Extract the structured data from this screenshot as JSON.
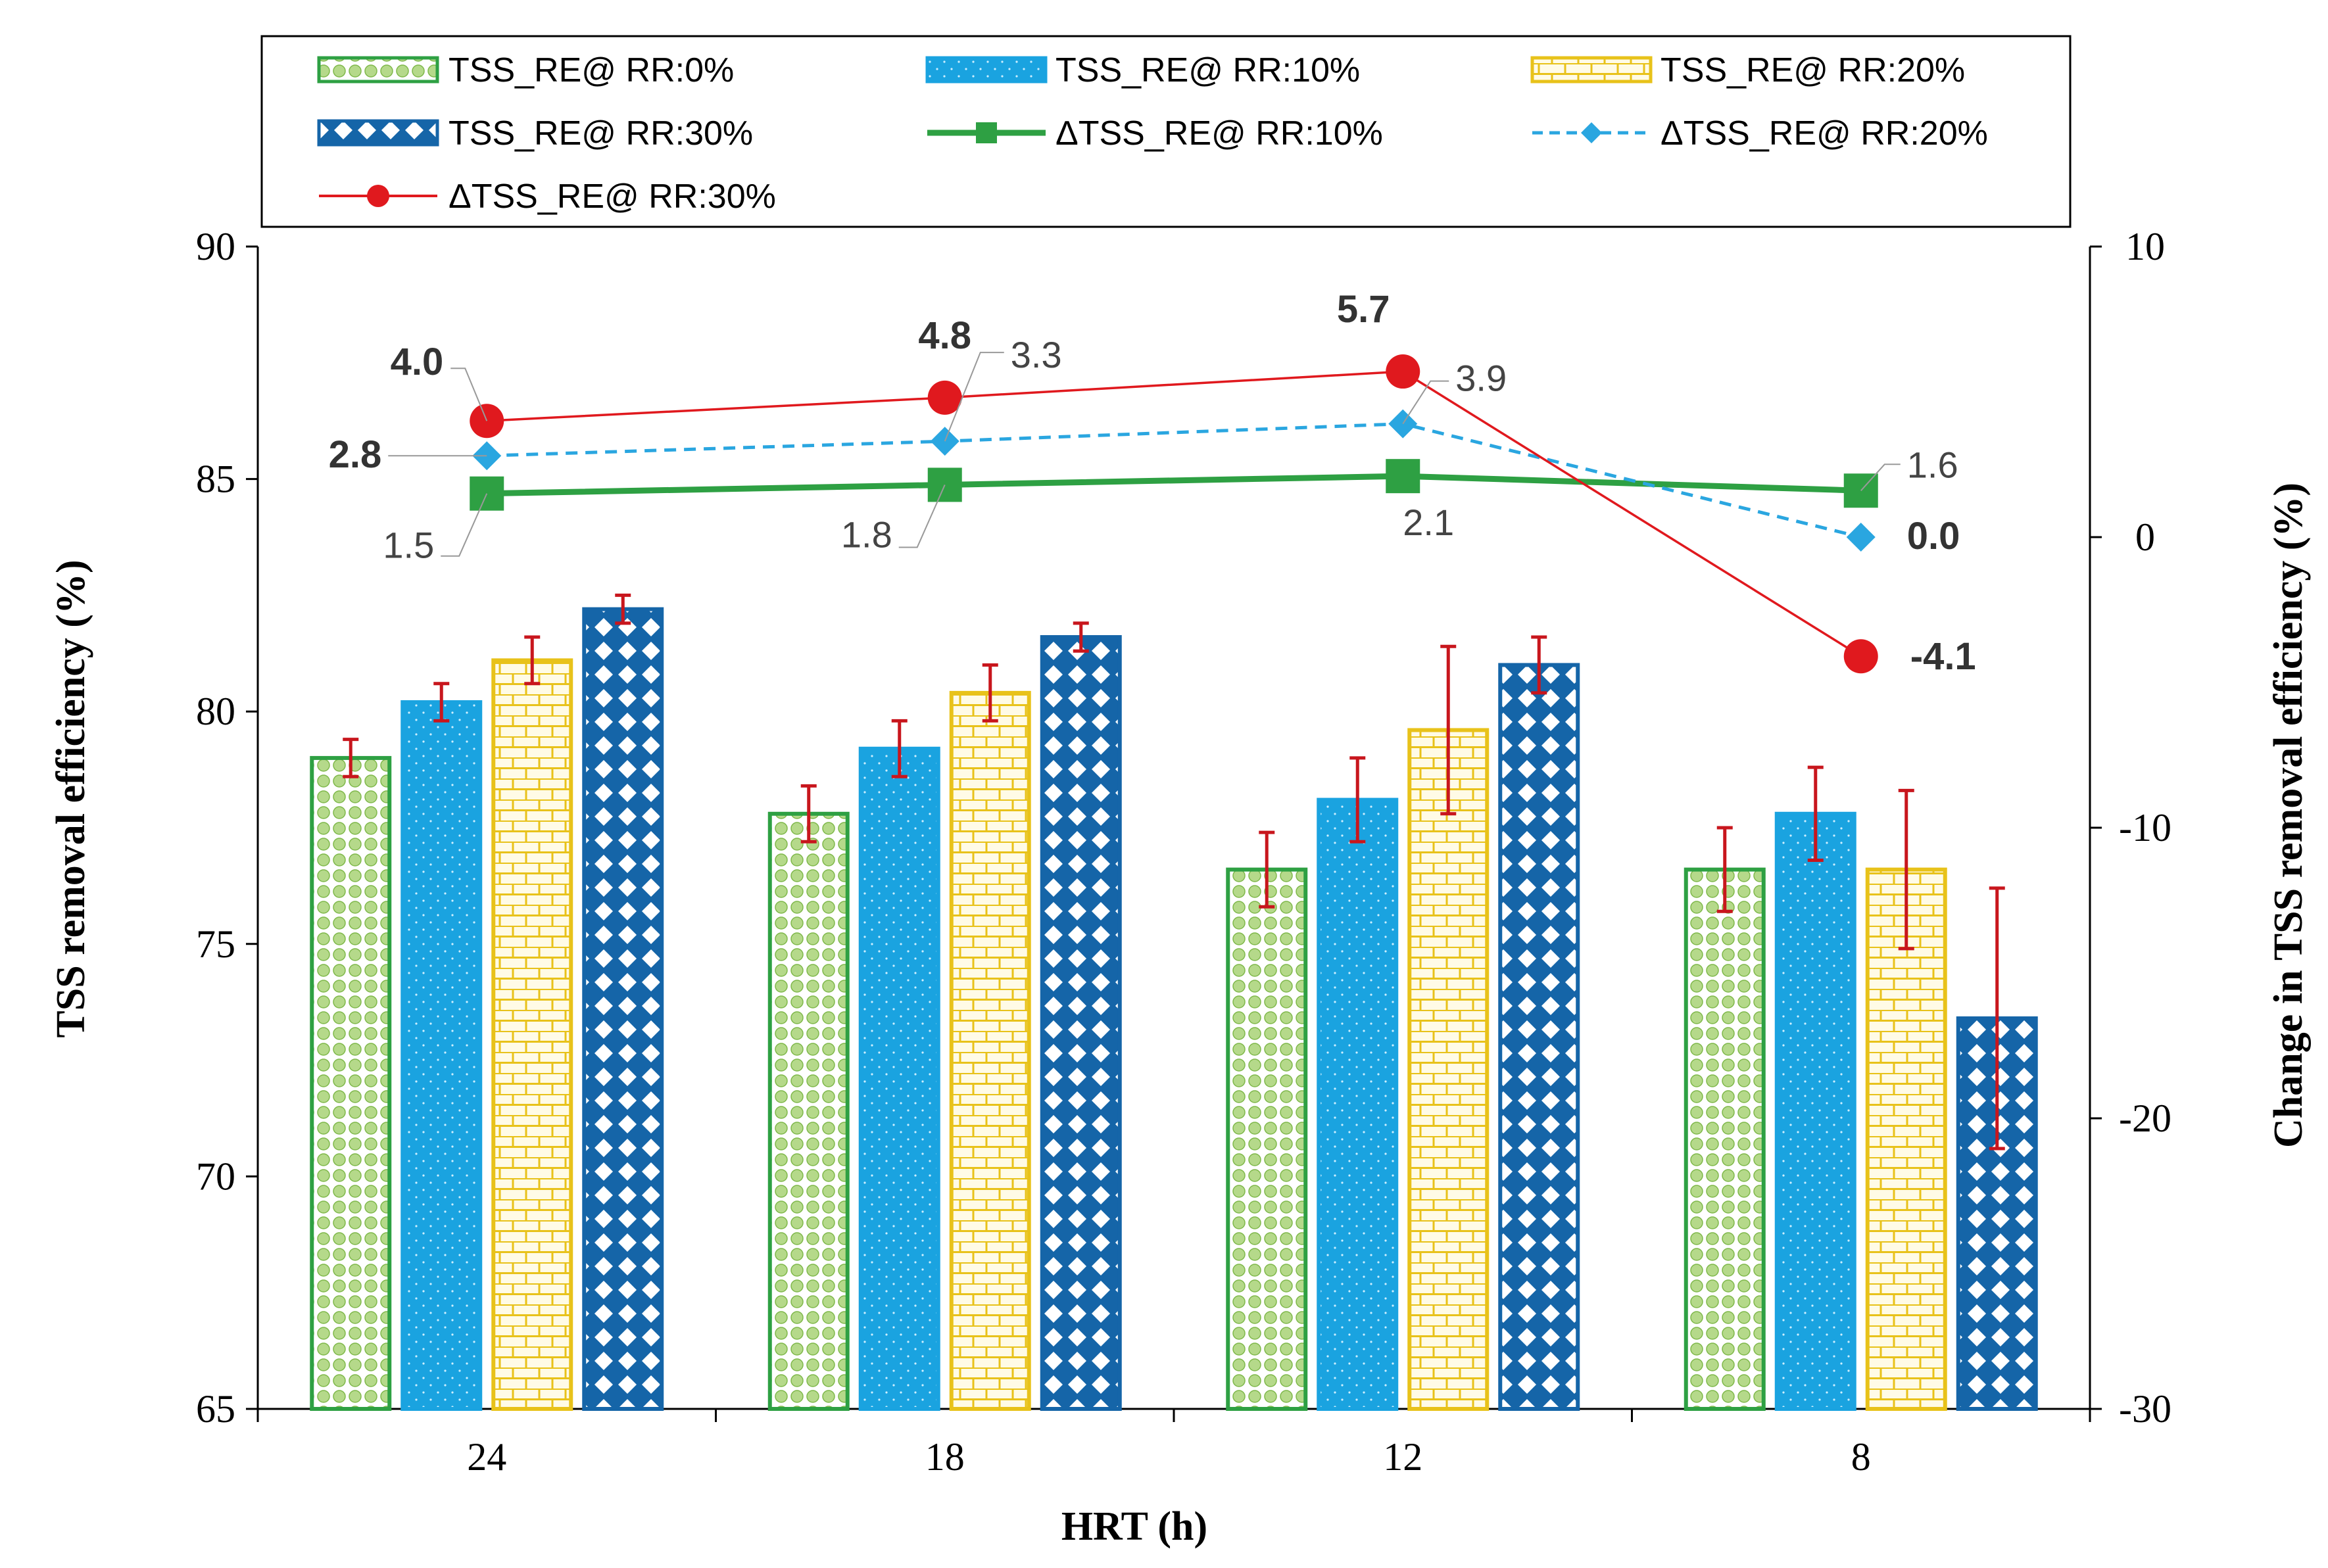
{
  "chart_data": {
    "type": "bar",
    "xlabel": "HRT (h)",
    "ylabel": "TSS removal efficiency (%)",
    "y2label": "Change in TSS removal efficiency (%)",
    "categories": [
      "24",
      "18",
      "12",
      "8"
    ],
    "ylim": [
      65,
      90
    ],
    "yticks": [
      "65",
      "70",
      "75",
      "80",
      "85",
      "90"
    ],
    "y2lim": [
      -30,
      10
    ],
    "y2ticks": [
      "-30",
      "-20",
      "-10",
      "0",
      "10"
    ],
    "bar_series": [
      {
        "name": "TSS_RE@ RR:0%",
        "values": [
          79.0,
          77.8,
          76.6,
          76.6
        ],
        "errors": [
          0.4,
          0.6,
          0.8,
          0.9
        ],
        "color": "#2ea043",
        "fill": "#b5d98a",
        "pattern": "circles"
      },
      {
        "name": "TSS_RE@ RR:10%",
        "values": [
          80.2,
          79.2,
          78.1,
          77.8
        ],
        "errors": [
          0.4,
          0.6,
          0.9,
          1.0
        ],
        "color": "#1aa3e0",
        "fill": "#1aa3e0",
        "pattern": "dots"
      },
      {
        "name": "TSS_RE@ RR:20%",
        "values": [
          81.1,
          80.4,
          79.6,
          76.6
        ],
        "errors": [
          0.5,
          0.6,
          1.8,
          1.7
        ],
        "color": "#e8c21a",
        "fill": "#fff3c4",
        "pattern": "bricks"
      },
      {
        "name": "TSS_RE@ RR:30%",
        "values": [
          82.2,
          81.6,
          81.0,
          73.4
        ],
        "errors": [
          0.3,
          0.3,
          0.6,
          2.8
        ],
        "color": "#1565a8",
        "fill": "#1565a8",
        "pattern": "diamonds"
      }
    ],
    "line_series": [
      {
        "name": "ΔTSS_RE@ RR:10%",
        "values": [
          1.5,
          1.8,
          2.1,
          1.6
        ],
        "labels": [
          "1.5",
          "1.8",
          "2.1",
          "1.6"
        ],
        "color": "#2ea043",
        "marker": "square",
        "dashed": false
      },
      {
        "name": "ΔTSS_RE@ RR:20%",
        "values": [
          2.8,
          3.3,
          3.9,
          0.0
        ],
        "labels": [
          "2.8",
          "3.3",
          "3.9",
          "0.0"
        ],
        "color": "#2aa6e0",
        "marker": "diamond",
        "dashed": true
      },
      {
        "name": "ΔTSS_RE@ RR:30%",
        "values": [
          4.0,
          4.8,
          5.7,
          -4.1
        ],
        "labels": [
          "4.0",
          "4.8",
          "5.7",
          "-4.1"
        ],
        "color": "#e0191e",
        "marker": "circle",
        "dashed": false
      }
    ],
    "legend_position": "top"
  }
}
